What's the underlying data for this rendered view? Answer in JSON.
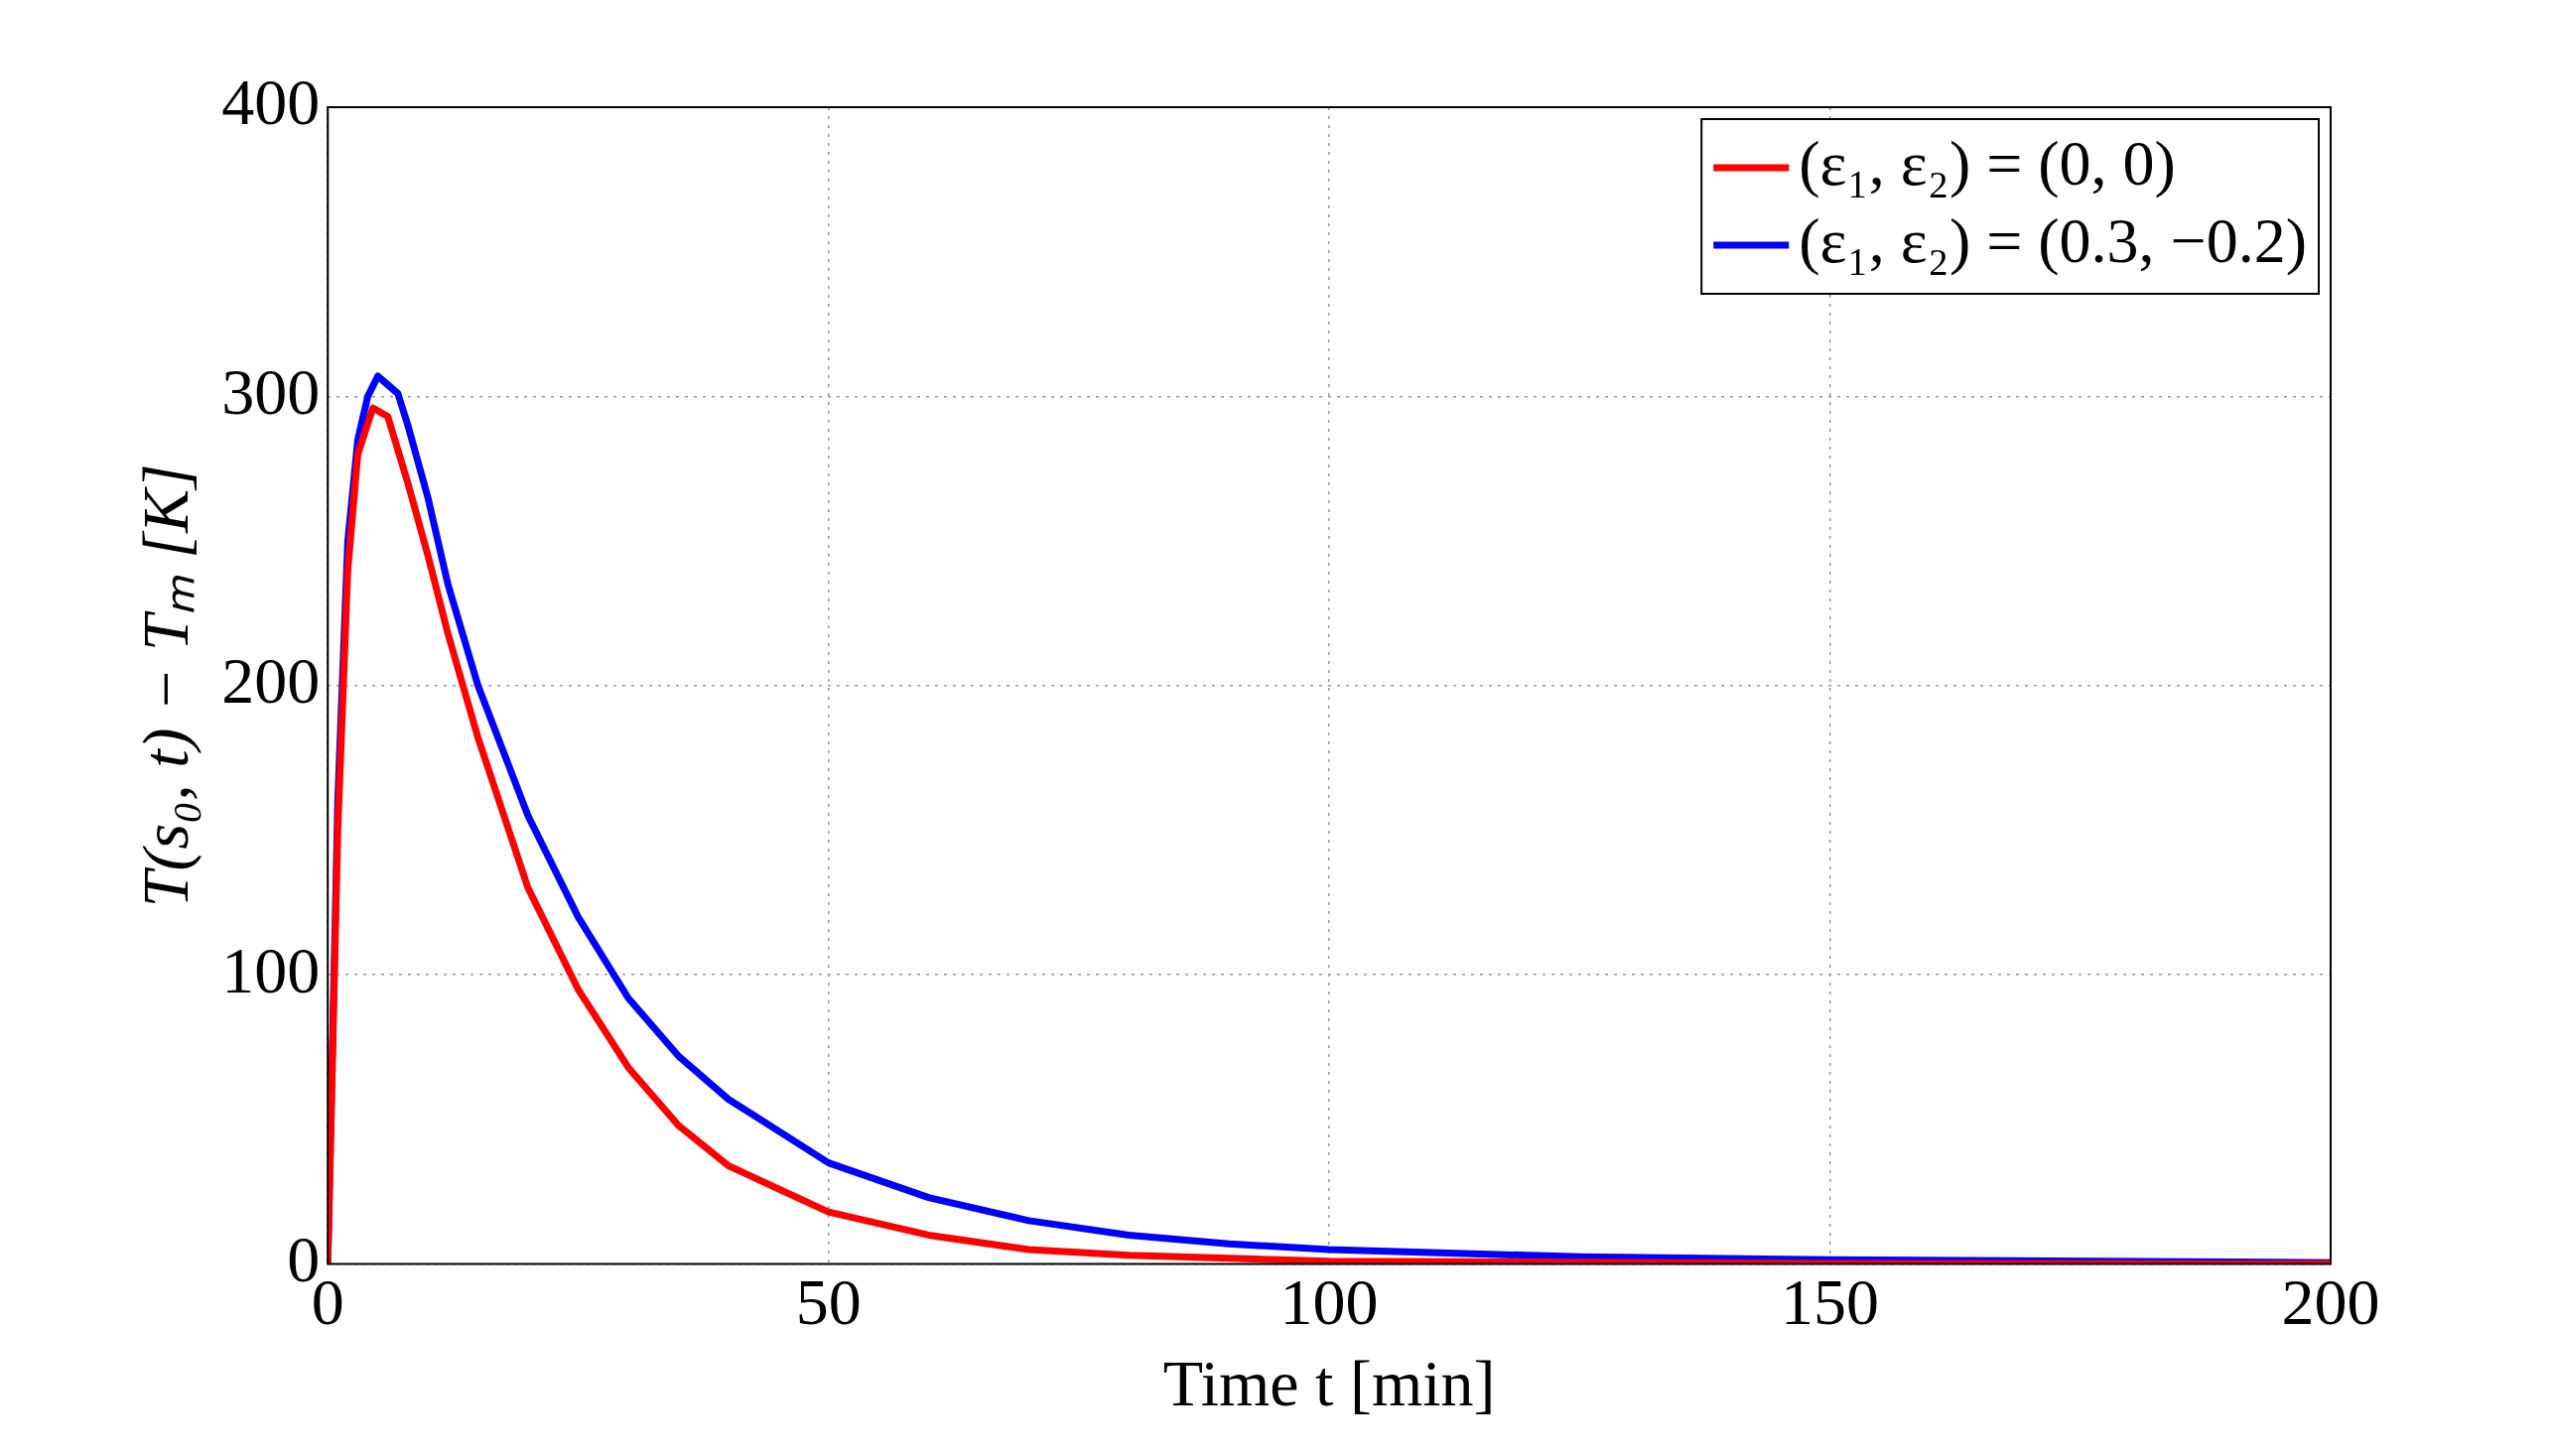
{
  "chart_data": {
    "type": "line",
    "xlabel": "Time t [min]",
    "ylabel": "T(s₀, t) − Tₘ [K]",
    "xlim": [
      0,
      200
    ],
    "xticks": [
      0,
      50,
      100,
      150,
      200
    ],
    "ylim": [
      0,
      400
    ],
    "yticks": [
      0,
      100,
      200,
      300,
      400
    ],
    "grid": true,
    "legend": "top right",
    "line_style": "solid",
    "marker": "none",
    "series": [
      {
        "name": "(ε₁, ε₂) = (0, 0)",
        "color": "#ff0000",
        "x": [
          0,
          1,
          2,
          3,
          4.5,
          6,
          8,
          10,
          12,
          15,
          20,
          25,
          30,
          35,
          40,
          50,
          60,
          70,
          80,
          100,
          150,
          200
        ],
        "values": [
          0,
          150,
          240,
          280,
          296,
          293,
          270,
          245,
          218,
          182,
          130,
          95,
          68,
          48,
          34,
          18,
          10,
          5,
          3,
          1,
          0.2,
          0
        ]
      },
      {
        "name": "(ε₁, ε₂) = (0.3, −0.2)",
        "color": "#0000ff",
        "x": [
          0,
          1,
          2,
          3,
          4,
          5,
          6,
          7,
          8,
          10,
          12,
          15,
          20,
          25,
          30,
          35,
          40,
          50,
          60,
          70,
          80,
          90,
          100,
          125,
          150,
          200
        ],
        "values": [
          0,
          160,
          250,
          285,
          300,
          307,
          304,
          301,
          290,
          265,
          235,
          200,
          155,
          120,
          92,
          72,
          57,
          35,
          23,
          15,
          10,
          7,
          5,
          2.5,
          1.5,
          0.5
        ]
      }
    ]
  }
}
